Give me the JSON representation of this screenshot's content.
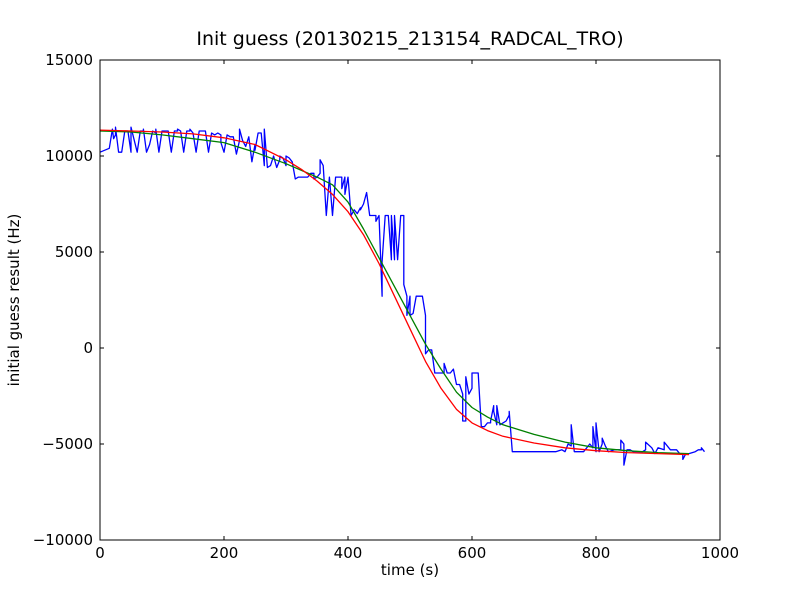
{
  "chart_data": {
    "type": "line",
    "title": "Init guess (20130215_213154_RADCAL_TRO)",
    "xlabel": "time (s)",
    "ylabel": "initial guess result (Hz)",
    "xlim": [
      0,
      1000
    ],
    "ylim": [
      -10000,
      15000
    ],
    "xticks": [
      0,
      200,
      400,
      600,
      800,
      1000
    ],
    "yticks": [
      -10000,
      -5000,
      0,
      5000,
      10000,
      15000
    ],
    "grid": false,
    "series": [
      {
        "color": "#0000ff",
        "x": [
          0,
          15,
          22,
          25,
          30,
          35,
          40,
          45,
          50,
          60,
          65,
          70,
          75,
          80,
          85,
          90,
          95,
          100,
          105,
          110,
          115,
          120,
          125,
          130,
          135,
          140,
          145,
          150,
          155,
          160,
          165,
          170,
          175,
          180,
          185,
          190,
          195,
          200,
          205,
          210,
          215,
          220,
          225,
          230,
          235,
          240,
          245,
          250,
          255,
          260,
          265,
          270,
          275,
          280,
          285,
          290,
          295,
          300,
          305,
          310,
          315,
          320,
          325,
          330,
          335,
          340,
          345,
          350,
          355,
          360,
          365,
          370,
          375,
          380,
          385,
          390,
          395,
          400,
          405,
          410,
          415,
          420,
          425,
          430,
          435,
          440,
          445,
          450,
          455,
          460,
          465,
          470,
          475,
          480,
          485,
          490,
          495,
          500,
          505,
          510,
          515,
          520,
          525,
          530,
          535,
          540,
          545,
          550,
          555,
          560,
          565,
          570,
          575,
          580,
          585,
          590,
          595,
          600,
          605,
          610,
          615,
          620,
          625,
          630,
          635,
          640,
          645,
          650,
          655,
          660,
          665,
          680,
          700,
          720,
          735,
          745,
          750,
          755,
          760,
          765,
          770,
          775,
          780,
          790,
          795,
          800,
          805,
          810,
          815,
          820,
          830,
          840,
          845,
          850,
          855,
          860,
          865,
          870,
          875,
          880,
          890,
          900,
          910,
          920,
          930,
          935,
          940,
          945,
          950,
          960,
          965,
          970,
          975
        ],
        "y": [
          10200,
          10400,
          10900,
          11100,
          10200,
          10200,
          11300,
          11300,
          10200,
          10200,
          11300,
          11300,
          10200,
          10600,
          11300,
          11200,
          10200,
          11300,
          11300,
          11300,
          10200,
          11300,
          11300,
          11300,
          10200,
          11300,
          11300,
          11200,
          10200,
          11300,
          11300,
          11300,
          10200,
          11200,
          11100,
          11200,
          11100,
          10200,
          11100,
          11000,
          11000,
          10100,
          10800,
          10800,
          10500,
          11000,
          9700,
          10600,
          11200,
          11200,
          9500,
          9400,
          9500,
          10000,
          9400,
          9800,
          9900,
          9500,
          9900,
          9700,
          8800,
          8900,
          8900,
          8900,
          8900,
          9100,
          9100,
          8900,
          9100,
          9500,
          6900,
          8900,
          6900,
          8900,
          8900,
          8900,
          8900,
          8900,
          6900,
          7200,
          7000,
          7300,
          7500,
          8100,
          6900,
          6900,
          6900,
          6900,
          2700,
          6900,
          6900,
          4600,
          4600,
          4600,
          6900,
          6900,
          2700,
          2700,
          1800,
          2700,
          2700,
          2700,
          1700,
          -100,
          -100,
          -1300,
          -1300,
          -1300,
          -1300,
          -1300,
          -1300,
          -1100,
          -1900,
          -1900,
          -2400,
          -3800,
          -2400,
          -2100,
          -1300,
          -1300,
          -4100,
          -4100,
          -3900,
          -3900,
          -3000,
          -4000,
          -4000,
          -3900,
          -3800,
          -3500,
          -5400,
          -5400,
          -5400,
          -5400,
          -5400,
          -5300,
          -5400,
          -5000,
          -5100,
          -5400,
          -5400,
          -5400,
          -5400,
          -5000,
          -5200,
          -5400,
          -5400,
          -5000,
          -5100,
          -5400,
          -5300,
          -5300,
          -5000,
          -5300,
          -5300,
          -5400,
          -5400,
          -5400,
          -5400,
          -5300,
          -5200,
          -5200,
          -5300,
          -5300,
          -5300,
          -5500,
          -5500,
          -5500,
          -5500,
          -5400,
          -5300,
          -5300,
          -5400
        ],
        "spikes": [
          [
            20,
            11400
          ],
          [
            25,
            11500
          ],
          [
            50,
            11500
          ],
          [
            70,
            11400
          ],
          [
            90,
            11400
          ],
          [
            125,
            11400
          ],
          [
            145,
            11400
          ],
          [
            170,
            11300
          ],
          [
            195,
            10700
          ],
          [
            225,
            11400
          ],
          [
            250,
            10300
          ],
          [
            265,
            11400
          ],
          [
            290,
            10000
          ],
          [
            300,
            10000
          ],
          [
            345,
            8800
          ],
          [
            355,
            9800
          ],
          [
            360,
            9500
          ],
          [
            390,
            8300
          ],
          [
            395,
            8000
          ],
          [
            420,
            7200
          ],
          [
            440,
            6900
          ],
          [
            445,
            6600
          ],
          [
            455,
            4500
          ],
          [
            470,
            6900
          ],
          [
            475,
            6900
          ],
          [
            490,
            3300
          ],
          [
            495,
            1700
          ],
          [
            500,
            1700
          ],
          [
            525,
            -300
          ],
          [
            555,
            -800
          ],
          [
            585,
            -3800
          ],
          [
            590,
            -1500
          ],
          [
            600,
            -1300
          ],
          [
            630,
            -3800
          ],
          [
            635,
            -3300
          ],
          [
            640,
            -3000
          ],
          [
            660,
            -3300
          ],
          [
            760,
            -4000
          ],
          [
            795,
            -4100
          ],
          [
            800,
            -3900
          ],
          [
            810,
            -4700
          ],
          [
            840,
            -4800
          ],
          [
            845,
            -6100
          ],
          [
            880,
            -4900
          ],
          [
            895,
            -5500
          ],
          [
            910,
            -4900
          ],
          [
            940,
            -5800
          ],
          [
            970,
            -5200
          ]
        ]
      },
      {
        "color": "#008000",
        "x": [
          0,
          50,
          100,
          150,
          200,
          250,
          300,
          350,
          375,
          400,
          425,
          450,
          475,
          500,
          525,
          550,
          575,
          600,
          625,
          650,
          700,
          750,
          800,
          850,
          900,
          950
        ],
        "y": [
          11300,
          11250,
          11100,
          10900,
          10700,
          10200,
          9600,
          8900,
          8500,
          7600,
          6200,
          4700,
          3200,
          1700,
          200,
          -1100,
          -2300,
          -3100,
          -3600,
          -4000,
          -4500,
          -4900,
          -5200,
          -5350,
          -5450,
          -5500
        ]
      },
      {
        "color": "#ff0000",
        "x": [
          0,
          50,
          100,
          150,
          200,
          250,
          300,
          325,
          350,
          375,
          400,
          425,
          450,
          475,
          500,
          525,
          550,
          575,
          600,
          625,
          650,
          700,
          750,
          800,
          850,
          900,
          950
        ],
        "y": [
          11350,
          11300,
          11250,
          11150,
          10950,
          10600,
          9800,
          9300,
          8700,
          8000,
          7100,
          5900,
          4400,
          2700,
          1000,
          -700,
          -2100,
          -3200,
          -3900,
          -4300,
          -4600,
          -4950,
          -5200,
          -5350,
          -5450,
          -5500,
          -5550
        ]
      }
    ]
  }
}
